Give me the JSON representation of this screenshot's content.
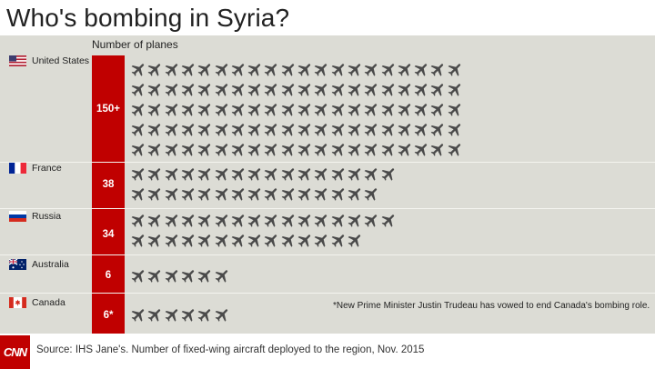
{
  "title": "Who's bombing in Syria?",
  "units_label": "Number of planes",
  "chart_data": {
    "type": "bar",
    "title": "Who's bombing in Syria?",
    "ylabel": "Number of planes",
    "categories": [
      "United States",
      "France",
      "Russia",
      "Australia",
      "Canada"
    ],
    "values": [
      150,
      38,
      34,
      6,
      6
    ],
    "value_labels": [
      "150+",
      "38",
      "34",
      "6",
      "6*"
    ],
    "icon_counts": [
      100,
      31,
      30,
      6,
      6
    ],
    "icon": "plane-icon",
    "bar_color": "#c00000",
    "icon_color": "#4a4a4a"
  },
  "rows": [
    {
      "country": "United States",
      "flag": "us-flag-icon",
      "value_label": "150+"
    },
    {
      "country": "France",
      "flag": "france-flag-icon",
      "value_label": "38"
    },
    {
      "country": "Russia",
      "flag": "russia-flag-icon",
      "value_label": "34"
    },
    {
      "country": "Australia",
      "flag": "australia-flag-icon",
      "value_label": "6"
    },
    {
      "country": "Canada",
      "flag": "canada-flag-icon",
      "value_label": "6*"
    }
  ],
  "footnote": "*New Prime Minister Justin Trudeau has vowed to end Canada's bombing role.",
  "logo_text": "CNN",
  "source": "Source: IHS Jane's. Number of fixed-wing aircraft deployed to the region, Nov. 2015",
  "colors": {
    "accent": "#c00000",
    "panel": "#dcdcd5",
    "icon": "#4a4a4a"
  }
}
